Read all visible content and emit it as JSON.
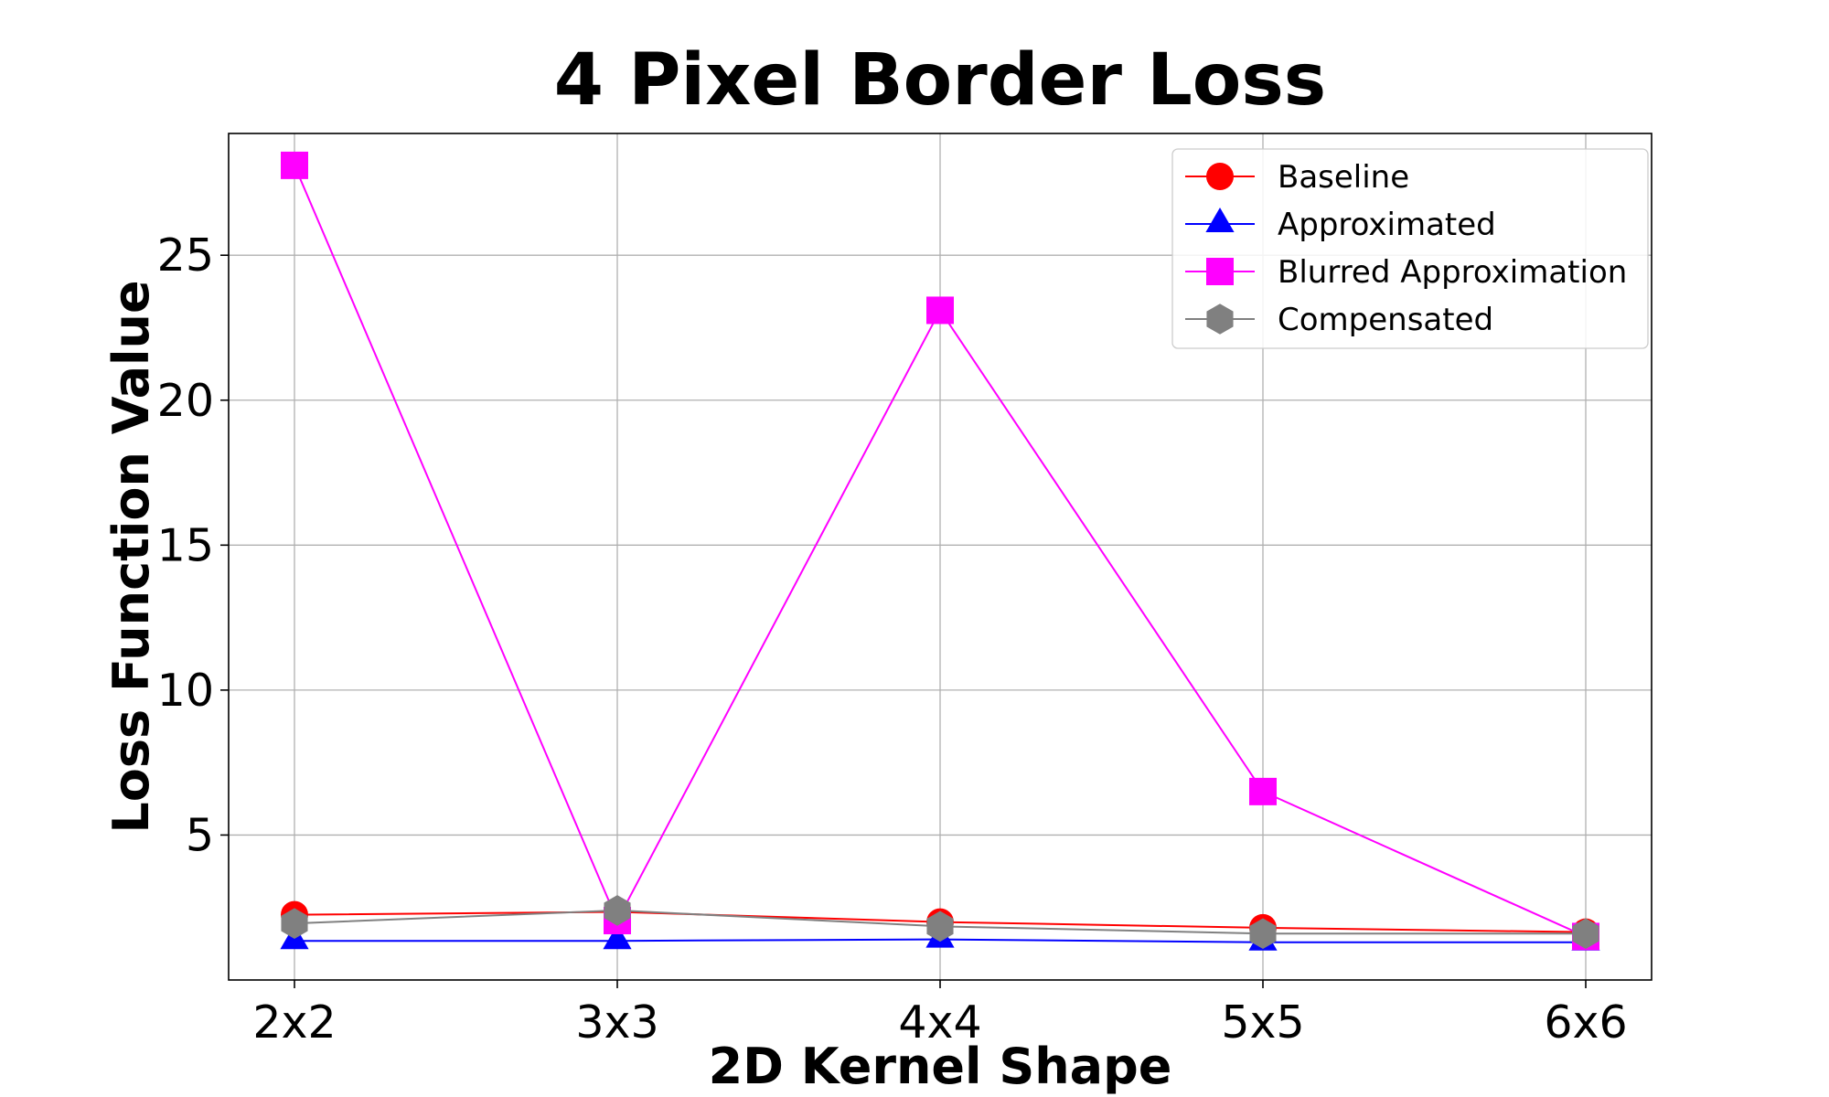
{
  "chart_data": {
    "type": "line",
    "title": "4 Pixel Border Loss",
    "xlabel": "2D Kernel Shape",
    "ylabel": "Loss Function Value",
    "categories": [
      "2x2",
      "3x3",
      "4x4",
      "5x5",
      "6x6"
    ],
    "ylim": [
      0.0,
      29.2
    ],
    "yticks": [
      5,
      10,
      15,
      20,
      25
    ],
    "grid": true,
    "legend_position": "top-right",
    "series": [
      {
        "name": "Baseline",
        "color": "#ff0000",
        "marker": "circle",
        "values": [
          2.25,
          2.35,
          2.0,
          1.8,
          1.65
        ]
      },
      {
        "name": "Approximated",
        "color": "#0000ff",
        "marker": "triangle",
        "values": [
          1.35,
          1.35,
          1.4,
          1.3,
          1.3
        ]
      },
      {
        "name": "Blurred Approximation",
        "color": "#ff00ff",
        "marker": "square",
        "values": [
          28.1,
          2.05,
          23.1,
          6.5,
          1.5
        ]
      },
      {
        "name": "Compensated",
        "color": "#808080",
        "marker": "hexagon",
        "values": [
          1.95,
          2.4,
          1.85,
          1.6,
          1.6
        ]
      }
    ]
  }
}
